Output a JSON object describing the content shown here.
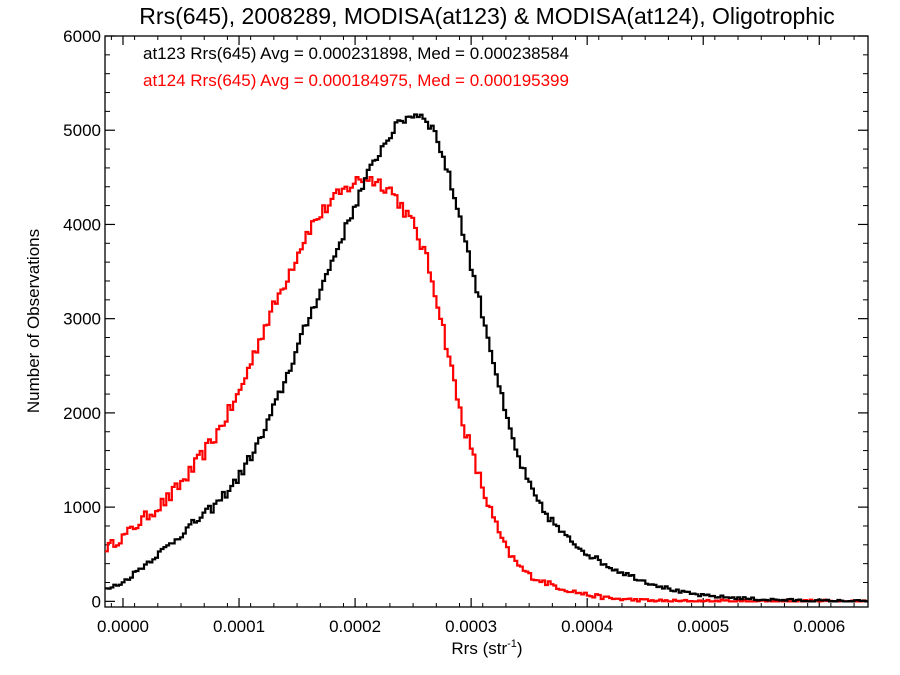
{
  "chart_data": {
    "type": "line",
    "title": "Rrs(645), 2008289, MODISA(at123) & MODISA(at124), Oligotrophic",
    "xlabel": "Rrs (str",
    "xlabel_sup": "-1",
    "xlabel_close": ")",
    "ylabel": "Number of Observations",
    "xlim": [
      -1.55e-05,
      0.000642
    ],
    "ylim": [
      -60,
      6000
    ],
    "x_ticks": [
      0.0,
      0.0001,
      0.0002,
      0.0003,
      0.0004,
      0.0005,
      0.0006
    ],
    "x_tick_labels": [
      "0.0000",
      "0.0001",
      "0.0002",
      "0.0003",
      "0.0004",
      "0.0005",
      "0.0006"
    ],
    "y_ticks": [
      0,
      1000,
      2000,
      3000,
      4000,
      5000,
      6000
    ],
    "y_tick_labels": [
      "0",
      "1000",
      "2000",
      "3000",
      "4000",
      "5000",
      "6000"
    ],
    "grid": false,
    "legend_placement": "top-left",
    "series": [
      {
        "legend": "at123 Rrs(645) Avg = 0.000231898, Med = 0.000238584",
        "color": "#000000",
        "x": [
          -1.55e-05,
          0.0,
          2e-05,
          4e-05,
          6e-05,
          8e-05,
          0.0001,
          0.00012,
          0.00014,
          0.00016,
          0.00018,
          0.0002,
          0.00021,
          0.00022,
          0.00023,
          0.00024,
          0.00025,
          0.00026,
          0.00027,
          0.00028,
          0.00029,
          0.0003,
          0.00031,
          0.00032,
          0.00033,
          0.00034,
          0.00035,
          0.00036,
          0.00038,
          0.0004,
          0.00042,
          0.00045,
          0.00048,
          0.0005,
          0.00055,
          0.0006,
          0.000642
        ],
        "y": [
          120,
          200,
          400,
          600,
          820,
          1020,
          1320,
          1750,
          2350,
          3000,
          3600,
          4200,
          4500,
          4750,
          4950,
          5100,
          5170,
          5150,
          4950,
          4550,
          4100,
          3560,
          3050,
          2520,
          1960,
          1550,
          1230,
          1000,
          700,
          510,
          360,
          210,
          100,
          60,
          20,
          5,
          0
        ],
        "jitter": 55
      },
      {
        "legend": "at124 Rrs(645) Avg = 0.000184975, Med = 0.000195399",
        "color": "#ff0000",
        "x": [
          -1.55e-05,
          0.0,
          2e-05,
          4e-05,
          6e-05,
          8e-05,
          0.0001,
          0.00012,
          0.00014,
          0.00016,
          0.00018,
          0.0002,
          0.00021,
          0.00022,
          0.00023,
          0.00024,
          0.00025,
          0.00026,
          0.00027,
          0.00028,
          0.00029,
          0.0003,
          0.00031,
          0.00032,
          0.00033,
          0.00034,
          0.00035,
          0.00036,
          0.00038,
          0.0004,
          0.00042,
          0.00045,
          0.00048,
          0.0005,
          0.00055,
          0.0006,
          0.000642
        ],
        "y": [
          560,
          680,
          900,
          1100,
          1400,
          1760,
          2200,
          2850,
          3400,
          3950,
          4250,
          4450,
          4500,
          4450,
          4380,
          4200,
          4000,
          3700,
          3250,
          2660,
          2050,
          1600,
          1200,
          850,
          560,
          390,
          280,
          220,
          130,
          70,
          30,
          8,
          0,
          0,
          0,
          0,
          0
        ],
        "jitter": 75
      }
    ]
  }
}
